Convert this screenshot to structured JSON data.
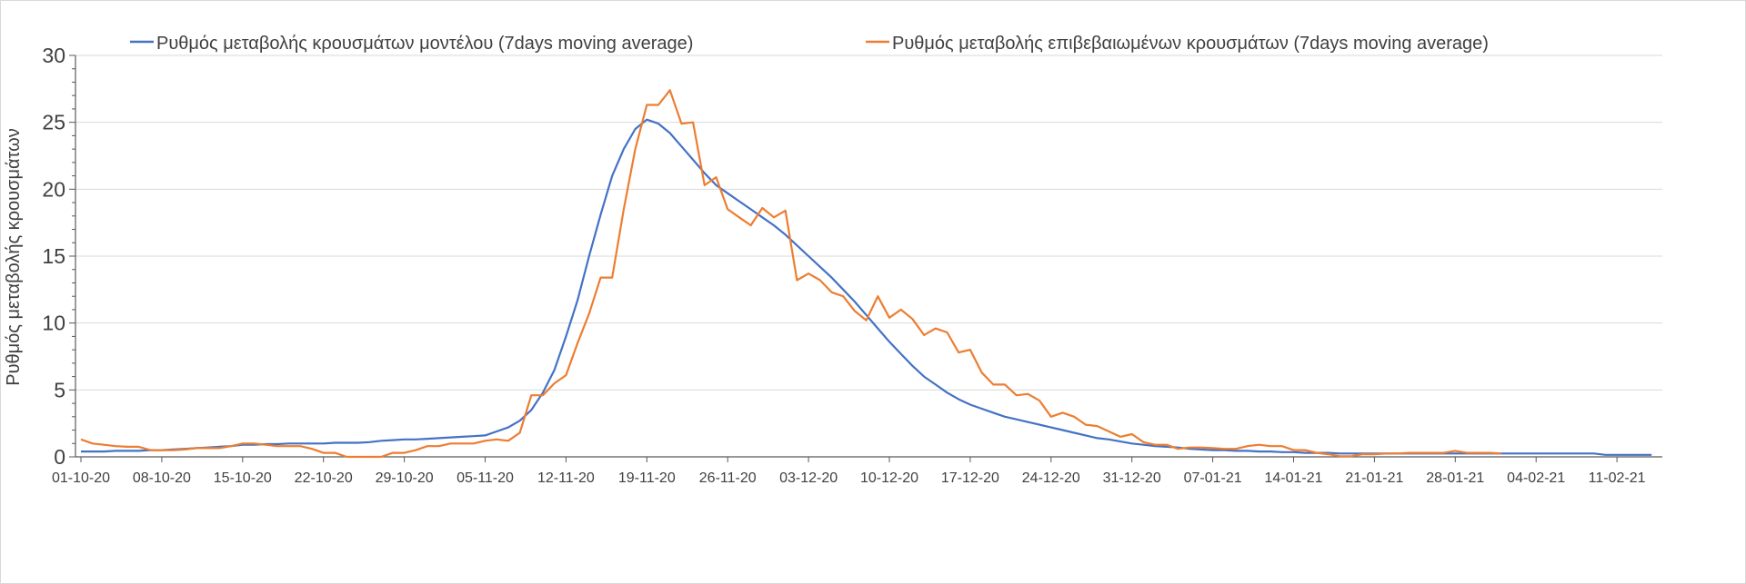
{
  "chart_data": {
    "type": "line",
    "title": "",
    "ylabel": "Ρυθμός μεταβολής κρουσμάτων",
    "xlabel": "",
    "ylim": [
      0,
      30
    ],
    "y_ticks": [
      0,
      5,
      10,
      15,
      20,
      25,
      30
    ],
    "grid": true,
    "legend_position": "top",
    "x_start": "01-10-20",
    "x_tick_every_days": 7,
    "x_tick_labels": [
      "01-10-20",
      "08-10-20",
      "15-10-20",
      "22-10-20",
      "29-10-20",
      "05-11-20",
      "12-11-20",
      "19-11-20",
      "26-11-20",
      "03-12-20",
      "10-12-20",
      "17-12-20",
      "24-12-20",
      "31-12-20",
      "07-01-21",
      "14-01-21",
      "21-01-21",
      "28-01-21",
      "04-02-21",
      "11-02-21"
    ],
    "series": [
      {
        "name": "Ρυθμός μεταβολής κρουσμάτων μοντέλου (7days moving average)",
        "color": "#4472C4",
        "values": [
          0.4,
          0.4,
          0.4,
          0.45,
          0.45,
          0.45,
          0.5,
          0.5,
          0.55,
          0.6,
          0.65,
          0.7,
          0.75,
          0.8,
          0.9,
          0.9,
          0.95,
          0.95,
          1.0,
          1.0,
          1.0,
          1.0,
          1.05,
          1.05,
          1.05,
          1.1,
          1.2,
          1.25,
          1.3,
          1.3,
          1.35,
          1.4,
          1.45,
          1.5,
          1.55,
          1.6,
          1.9,
          2.2,
          2.7,
          3.5,
          4.8,
          6.5,
          9.0,
          11.7,
          15.0,
          18.1,
          21.0,
          23.0,
          24.5,
          25.2,
          24.9,
          24.2,
          23.2,
          22.2,
          21.2,
          20.3,
          19.7,
          19.1,
          18.5,
          17.9,
          17.3,
          16.6,
          15.8,
          15.0,
          14.2,
          13.4,
          12.5,
          11.6,
          10.6,
          9.6,
          8.6,
          7.7,
          6.8,
          6.0,
          5.4,
          4.8,
          4.3,
          3.9,
          3.6,
          3.3,
          3.0,
          2.8,
          2.6,
          2.4,
          2.2,
          2.0,
          1.8,
          1.6,
          1.4,
          1.3,
          1.15,
          1.0,
          0.9,
          0.8,
          0.75,
          0.7,
          0.6,
          0.55,
          0.5,
          0.5,
          0.45,
          0.45,
          0.4,
          0.4,
          0.35,
          0.35,
          0.3,
          0.3,
          0.3,
          0.25,
          0.25,
          0.25,
          0.25,
          0.25,
          0.25,
          0.25,
          0.25,
          0.25,
          0.25,
          0.25,
          0.25,
          0.25,
          0.25,
          0.25,
          0.25,
          0.25,
          0.25,
          0.25,
          0.25,
          0.25,
          0.25,
          0.25,
          0.15,
          0.15,
          0.15,
          0.15,
          0.15
        ]
      },
      {
        "name": "Ρυθμός μεταβολής επιβεβαιωμένων κρουσμάτων (7days moving average)",
        "color": "#ED7D31",
        "values": [
          1.3,
          1.0,
          0.9,
          0.8,
          0.75,
          0.75,
          0.5,
          0.5,
          0.5,
          0.55,
          0.65,
          0.65,
          0.65,
          0.8,
          1.0,
          1.0,
          0.9,
          0.8,
          0.8,
          0.8,
          0.6,
          0.3,
          0.3,
          0,
          0,
          0,
          0,
          0.3,
          0.3,
          0.5,
          0.8,
          0.8,
          1.0,
          1.0,
          1.0,
          1.2,
          1.3,
          1.2,
          1.8,
          4.6,
          4.6,
          5.5,
          6.1,
          8.5,
          10.7,
          13.4,
          13.4,
          18.5,
          23.0,
          26.3,
          26.3,
          27.4,
          24.9,
          25.0,
          20.3,
          20.9,
          18.5,
          17.9,
          17.3,
          18.6,
          17.9,
          18.4,
          13.2,
          13.7,
          13.2,
          12.3,
          12.0,
          10.9,
          10.2,
          12.0,
          10.4,
          11.0,
          10.3,
          9.1,
          9.6,
          9.3,
          7.8,
          8.0,
          6.3,
          5.4,
          5.4,
          4.6,
          4.7,
          4.2,
          3.0,
          3.3,
          3.0,
          2.4,
          2.3,
          1.9,
          1.5,
          1.7,
          1.1,
          0.9,
          0.9,
          0.6,
          0.7,
          0.7,
          0.65,
          0.6,
          0.6,
          0.8,
          0.9,
          0.8,
          0.8,
          0.5,
          0.5,
          0.3,
          0.2,
          0.05,
          0.05,
          0.2,
          0.2,
          0.25,
          0.25,
          0.3,
          0.3,
          0.3,
          0.3,
          0.45,
          0.3,
          0.3,
          0.3,
          0.25
        ]
      }
    ]
  }
}
